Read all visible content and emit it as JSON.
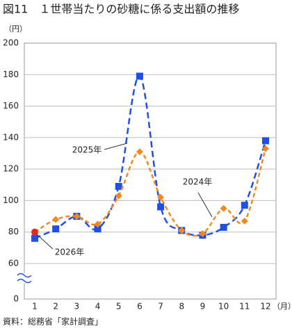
{
  "chart_data": {
    "type": "line",
    "title": "図11　１世帯当たりの砂糖に係る支出額の推移",
    "y_unit": "（円）",
    "x_unit": "（月）",
    "source": "資料：総務省「家計調査」",
    "categories": [
      "1",
      "2",
      "3",
      "4",
      "5",
      "6",
      "7",
      "8",
      "9",
      "10",
      "11",
      "12"
    ],
    "series": [
      {
        "name": "2025年",
        "color": "#1f4fe6",
        "marker": "square",
        "values": [
          76,
          82,
          90,
          82,
          109,
          179,
          96,
          81,
          78,
          83,
          97,
          138
        ]
      },
      {
        "name": "2024年",
        "color": "#f08a1c",
        "marker": "diamond",
        "values": [
          80,
          88,
          90,
          85,
          103,
          131,
          102,
          81,
          79,
          95,
          87,
          133
        ]
      },
      {
        "name": "2026年",
        "color": "#e8281e",
        "marker": "circle",
        "values": [
          80,
          null,
          null,
          null,
          null,
          null,
          null,
          null,
          null,
          null,
          null,
          null
        ]
      }
    ],
    "ylim": [
      0,
      200
    ],
    "axis_break": [
      0,
      60
    ],
    "yticks": [
      0,
      60,
      80,
      100,
      120,
      140,
      160,
      180,
      200
    ],
    "grid": true
  }
}
